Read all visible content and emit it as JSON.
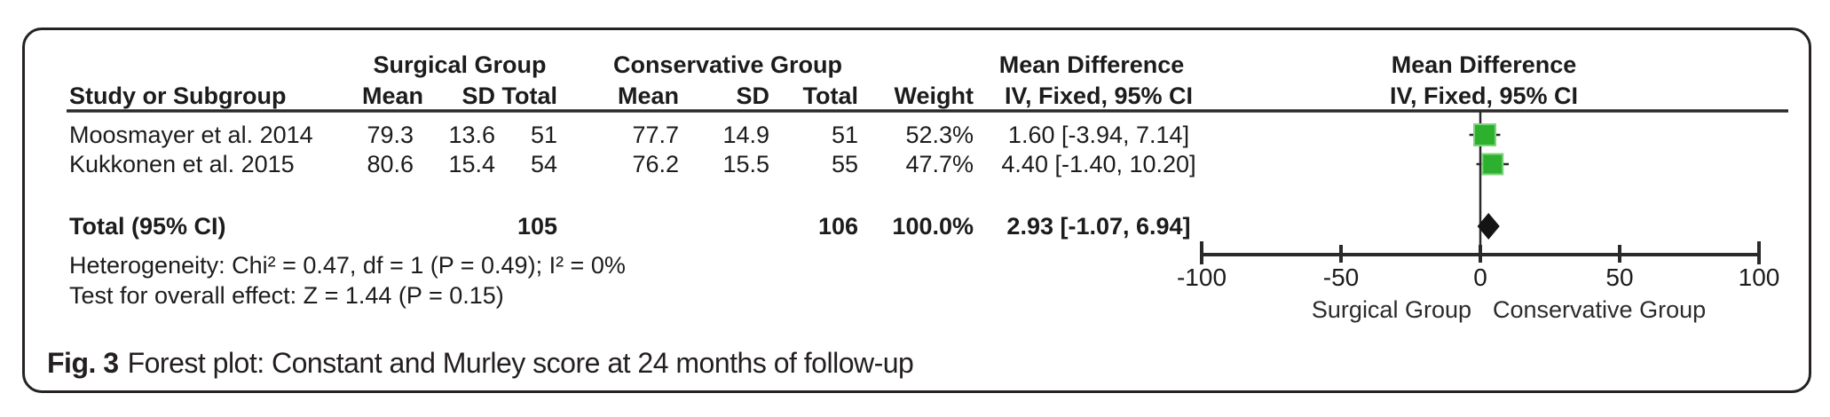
{
  "figure": {
    "caption_label": "Fig. 3",
    "caption_text": "Forest plot: Constant and Murley score at 24 months of follow-up"
  },
  "colors": {
    "marker_green": "#2eb02f",
    "marker_green_edge": "#7fd47f",
    "diamond_black": "#141414",
    "line_black": "#2a2a2a"
  },
  "table": {
    "group_headers": {
      "surgical": "Surgical Group",
      "conservative": "Conservative Group",
      "mean_difference": "Mean Difference"
    },
    "col_headers": {
      "study": "Study or Subgroup",
      "mean": "Mean",
      "sd": "SD",
      "total": "Total",
      "weight": "Weight",
      "ci": "IV, Fixed, 95% CI"
    },
    "plot_header": {
      "line1": "Mean Difference",
      "line2": "IV, Fixed, 95% CI"
    },
    "rows": [
      {
        "study": "Moosmayer et al. 2014",
        "s_mean": "79.3",
        "s_sd": "13.6",
        "s_total": "51",
        "c_mean": "77.7",
        "c_sd": "14.9",
        "c_total": "51",
        "weight": "52.3%",
        "ci": "1.60 [-3.94, 7.14]"
      },
      {
        "study": "Kukkonen et al. 2015",
        "s_mean": "80.6",
        "s_sd": "15.4",
        "s_total": "54",
        "c_mean": "76.2",
        "c_sd": "15.5",
        "c_total": "55",
        "weight": "47.7%",
        "ci": "4.40 [-1.40, 10.20]"
      }
    ],
    "total_row": {
      "label": "Total (95% CI)",
      "s_total": "105",
      "c_total": "106",
      "weight": "100.0%",
      "ci": "2.93 [-1.07, 6.94]"
    },
    "heterogeneity": "Heterogeneity: Chi² = 0.47, df = 1 (P = 0.49); I² = 0%",
    "overall_effect": "Test for overall effect: Z = 1.44 (P = 0.15)"
  },
  "chart_data": {
    "type": "forest",
    "title": "Fig. 3 Forest plot: Constant and Murley score at 24 months of follow-up",
    "effect_measure": "Mean Difference",
    "method": "IV, Fixed, 95% CI",
    "studies": [
      {
        "name": "Moosmayer et al. 2014",
        "surgical": {
          "mean": 79.3,
          "sd": 13.6,
          "total": 51
        },
        "conservative": {
          "mean": 77.7,
          "sd": 14.9,
          "total": 51
        },
        "weight_pct": 52.3,
        "md": 1.6,
        "ci_low": -3.94,
        "ci_high": 7.14
      },
      {
        "name": "Kukkonen et al. 2015",
        "surgical": {
          "mean": 80.6,
          "sd": 15.4,
          "total": 54
        },
        "conservative": {
          "mean": 76.2,
          "sd": 15.5,
          "total": 55
        },
        "weight_pct": 47.7,
        "md": 4.4,
        "ci_low": -1.4,
        "ci_high": 10.2
      }
    ],
    "total": {
      "surgical_total": 105,
      "conservative_total": 106,
      "weight_pct": 100.0,
      "md": 2.93,
      "ci_low": -1.07,
      "ci_high": 6.94
    },
    "heterogeneity": {
      "chi2": 0.47,
      "df": 1,
      "p": 0.49,
      "i2_pct": 0
    },
    "overall_effect": {
      "z": 1.44,
      "p": 0.15
    },
    "xaxis": {
      "xlim": [
        -100,
        100
      ],
      "ticks": [
        -100,
        -50,
        0,
        50,
        100
      ],
      "left_label": "Surgical Group",
      "right_label": "Conservative Group"
    }
  }
}
